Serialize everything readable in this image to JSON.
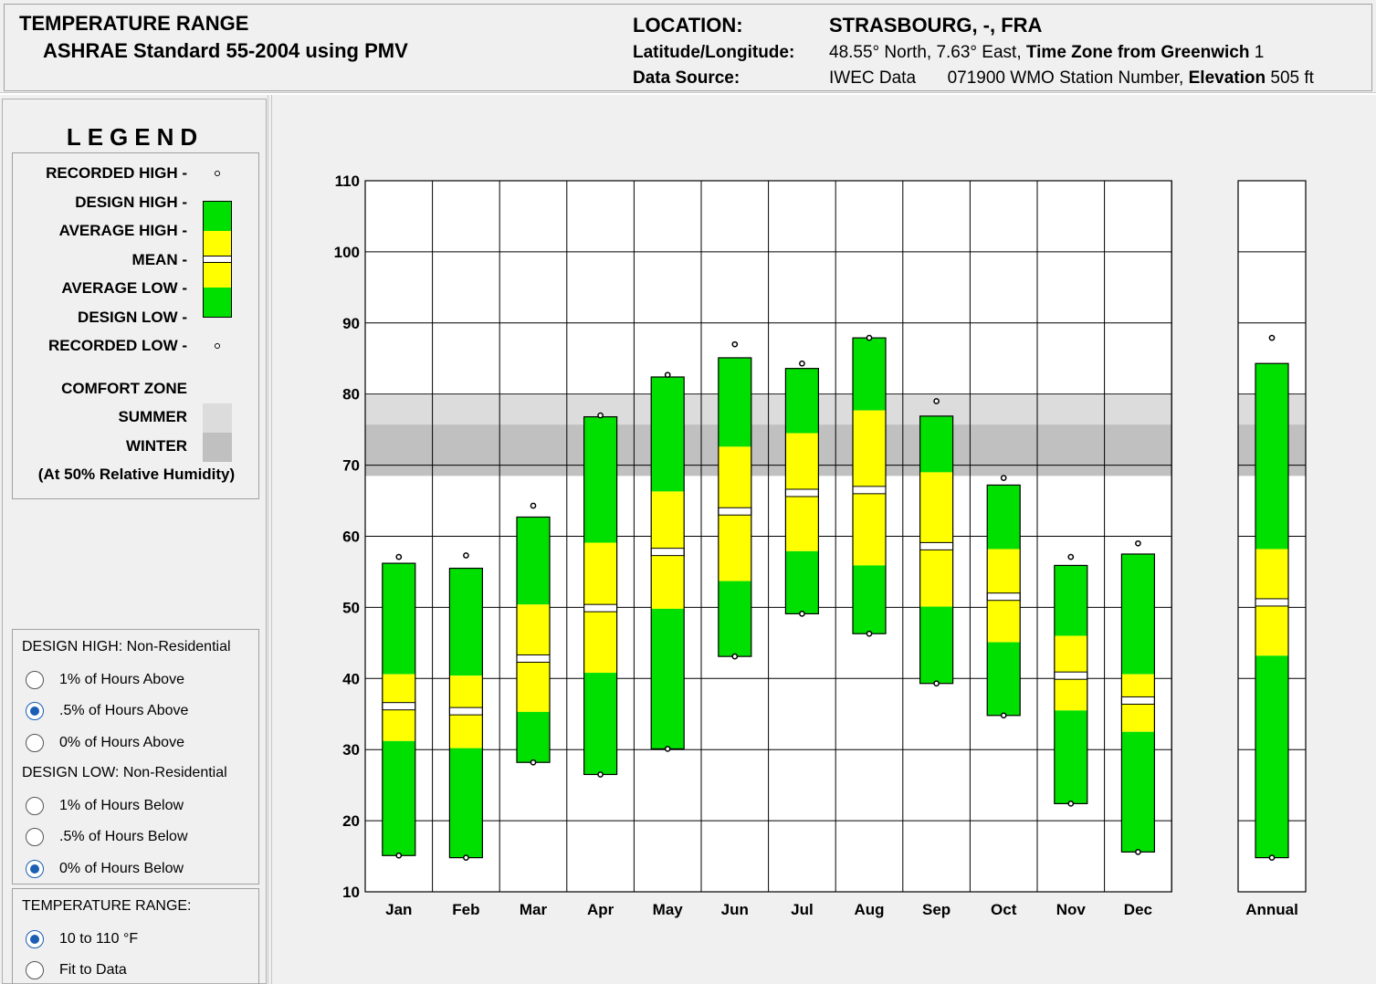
{
  "header": {
    "title": "TEMPERATURE RANGE",
    "subtitle": "ASHRAE Standard 55-2004 using PMV",
    "location_label": "LOCATION:",
    "location_value": "STRASBOURG, -, FRA",
    "latlong_label": "Latitude/Longitude:",
    "latlong_value": "48.55° North, 7.63° East,",
    "timezone_label": "Time Zone from Greenwich",
    "timezone_value": "1",
    "source_label": "Data Source:",
    "source_value": "IWEC Data",
    "station_value": "071900 WMO Station Number,",
    "elevation_label": "Elevation",
    "elevation_value": "505 ft"
  },
  "legend": {
    "title": "LEGEND",
    "recorded_high": "RECORDED HIGH -",
    "design_high": "DESIGN HIGH -",
    "average_high": "AVERAGE HIGH -",
    "mean": "MEAN -",
    "average_low": "AVERAGE LOW -",
    "design_low": "DESIGN LOW -",
    "recorded_low": "RECORDED LOW -",
    "comfort_zone": "COMFORT ZONE",
    "summer": "SUMMER",
    "winter": "WINTER",
    "humidity_note": "(At 50% Relative Humidity)"
  },
  "options": {
    "design_high_heading": "DESIGN HIGH:  Non-Residential",
    "design_high_options": [
      {
        "label": "1% of Hours Above",
        "selected": false
      },
      {
        "label": ".5% of Hours Above",
        "selected": true
      },
      {
        "label": "0% of Hours Above",
        "selected": false
      }
    ],
    "design_low_heading": "DESIGN LOW:  Non-Residential",
    "design_low_options": [
      {
        "label": "1% of Hours Below",
        "selected": false
      },
      {
        "label": ".5% of Hours Below",
        "selected": false
      },
      {
        "label": "0% of Hours Below",
        "selected": true
      }
    ],
    "range_heading": "TEMPERATURE RANGE:",
    "range_options": [
      {
        "label": "10 to 110 °F",
        "selected": true
      },
      {
        "label": "Fit to Data",
        "selected": false
      }
    ]
  },
  "colors": {
    "design": "#00e000",
    "average": "#ffff00",
    "mean": "#ffffff",
    "summer_zone": "#dcdcdc",
    "winter_zone": "#c0c0c0",
    "radio_selected": "#1a5fb4"
  },
  "chart_data": {
    "type": "bar",
    "ylim": [
      10,
      110
    ],
    "yticks": [
      "10",
      "20",
      "30",
      "40",
      "50",
      "60",
      "70",
      "80",
      "90",
      "100",
      "110"
    ],
    "ytick_values": [
      10,
      20,
      30,
      40,
      50,
      60,
      70,
      80,
      90,
      100,
      110
    ],
    "comfort_summer": [
      68.5,
      79.8
    ],
    "comfort_winter": [
      68.5,
      75.7
    ],
    "categories": [
      "Jan",
      "Feb",
      "Mar",
      "Apr",
      "May",
      "Jun",
      "Jul",
      "Aug",
      "Sep",
      "Oct",
      "Nov",
      "Dec",
      "Annual"
    ],
    "recorded_high": [
      57.1,
      57.3,
      64.3,
      77.0,
      82.7,
      87.0,
      84.3,
      87.9,
      79.0,
      68.2,
      57.1,
      59.0,
      87.9
    ],
    "design_high": [
      56.2,
      55.5,
      62.7,
      76.8,
      82.4,
      85.1,
      83.6,
      87.9,
      76.9,
      67.2,
      55.9,
      57.5,
      84.3
    ],
    "average_high": [
      40.6,
      40.4,
      50.4,
      59.1,
      66.3,
      72.6,
      74.5,
      77.7,
      69.0,
      58.2,
      46.0,
      40.6,
      58.2
    ],
    "mean": [
      36.1,
      35.4,
      42.8,
      49.9,
      57.8,
      63.5,
      66.1,
      66.5,
      58.6,
      51.5,
      40.4,
      36.9,
      50.7
    ],
    "average_low": [
      31.2,
      30.2,
      35.3,
      40.8,
      49.8,
      53.7,
      57.9,
      55.9,
      50.1,
      45.1,
      35.5,
      32.5,
      43.2
    ],
    "design_low": [
      15.1,
      14.8,
      28.2,
      26.5,
      30.1,
      43.1,
      49.1,
      46.3,
      39.3,
      34.8,
      22.4,
      15.6,
      14.8
    ],
    "recorded_low": [
      15.1,
      14.8,
      28.2,
      26.5,
      30.1,
      43.1,
      49.1,
      46.3,
      39.3,
      34.8,
      22.4,
      15.6,
      14.8
    ]
  }
}
